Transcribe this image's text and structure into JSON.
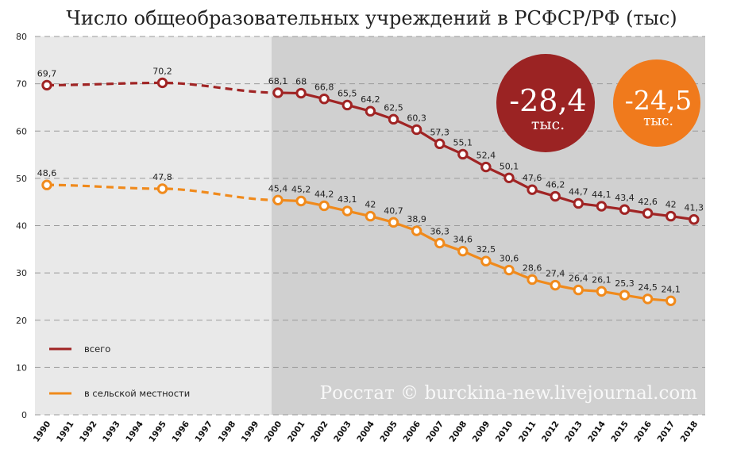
{
  "chart_data": {
    "type": "line",
    "title": "Число общеобразовательных учреждений в РСФСР/РФ (тыс)",
    "xlabel": "",
    "ylabel": "",
    "ylim": [
      0,
      80
    ],
    "yticks": [
      0,
      10,
      20,
      30,
      40,
      50,
      60,
      70,
      80
    ],
    "x": [
      1990,
      1991,
      1992,
      1993,
      1994,
      1995,
      1996,
      1997,
      1998,
      1999,
      2000,
      2001,
      2002,
      2003,
      2004,
      2005,
      2006,
      2007,
      2008,
      2009,
      2010,
      2011,
      2012,
      2013,
      2014,
      2015,
      2016,
      2017,
      2018
    ],
    "grid": true,
    "shaded_from_x": 2000,
    "series": [
      {
        "name": "всего",
        "color": "#a02424",
        "dashed_until_x": 2000,
        "points": [
          {
            "x": 1990,
            "y": 69.7,
            "label": "69,7"
          },
          {
            "x": 1995,
            "y": 70.2,
            "label": "70,2"
          },
          {
            "x": 2000,
            "y": 68.1,
            "label": "68,1"
          },
          {
            "x": 2001,
            "y": 68.0,
            "label": "68"
          },
          {
            "x": 2002,
            "y": 66.8,
            "label": "66,8"
          },
          {
            "x": 2003,
            "y": 65.5,
            "label": "65,5"
          },
          {
            "x": 2004,
            "y": 64.2,
            "label": "64,2"
          },
          {
            "x": 2005,
            "y": 62.5,
            "label": "62,5"
          },
          {
            "x": 2006,
            "y": 60.3,
            "label": "60,3"
          },
          {
            "x": 2007,
            "y": 57.3,
            "label": "57,3"
          },
          {
            "x": 2008,
            "y": 55.1,
            "label": "55,1"
          },
          {
            "x": 2009,
            "y": 52.4,
            "label": "52,4"
          },
          {
            "x": 2010,
            "y": 50.1,
            "label": "50,1"
          },
          {
            "x": 2011,
            "y": 47.6,
            "label": "47,6"
          },
          {
            "x": 2012,
            "y": 46.2,
            "label": "46,2"
          },
          {
            "x": 2013,
            "y": 44.7,
            "label": "44,7"
          },
          {
            "x": 2014,
            "y": 44.1,
            "label": "44,1"
          },
          {
            "x": 2015,
            "y": 43.4,
            "label": "43,4"
          },
          {
            "x": 2016,
            "y": 42.6,
            "label": "42,6"
          },
          {
            "x": 2017,
            "y": 42.0,
            "label": "42"
          },
          {
            "x": 2018,
            "y": 41.3,
            "label": "41,3"
          }
        ]
      },
      {
        "name": "в сельской местности",
        "color": "#f08a1c",
        "dashed_until_x": 2000,
        "points": [
          {
            "x": 1990,
            "y": 48.6,
            "label": "48,6"
          },
          {
            "x": 1995,
            "y": 47.8,
            "label": "47,8"
          },
          {
            "x": 2000,
            "y": 45.4,
            "label": "45,4"
          },
          {
            "x": 2001,
            "y": 45.2,
            "label": "45,2"
          },
          {
            "x": 2002,
            "y": 44.2,
            "label": "44,2"
          },
          {
            "x": 2003,
            "y": 43.1,
            "label": "43,1"
          },
          {
            "x": 2004,
            "y": 42.0,
            "label": "42"
          },
          {
            "x": 2005,
            "y": 40.7,
            "label": "40,7"
          },
          {
            "x": 2006,
            "y": 38.9,
            "label": "38,9"
          },
          {
            "x": 2007,
            "y": 36.3,
            "label": "36,3"
          },
          {
            "x": 2008,
            "y": 34.6,
            "label": "34,6"
          },
          {
            "x": 2009,
            "y": 32.5,
            "label": "32,5"
          },
          {
            "x": 2010,
            "y": 30.6,
            "label": "30,6"
          },
          {
            "x": 2011,
            "y": 28.6,
            "label": "28,6"
          },
          {
            "x": 2012,
            "y": 27.4,
            "label": "27,4"
          },
          {
            "x": 2013,
            "y": 26.4,
            "label": "26,4"
          },
          {
            "x": 2014,
            "y": 26.1,
            "label": "26,1"
          },
          {
            "x": 2015,
            "y": 25.3,
            "label": "25,3"
          },
          {
            "x": 2016,
            "y": 24.5,
            "label": "24,5"
          },
          {
            "x": 2017,
            "y": 24.1,
            "label": "24,1"
          }
        ]
      }
    ],
    "legend": {
      "placement": "bottom-left",
      "entries": [
        {
          "label": "всего",
          "color": "#a02424"
        },
        {
          "label": "в сельской местности",
          "color": "#f08a1c"
        }
      ]
    },
    "annotations": [
      {
        "kind": "badge",
        "value": "-28,4",
        "unit": "тыс.",
        "color": "#9b2323"
      },
      {
        "kind": "badge",
        "value": "-24,5",
        "unit": "тыс.",
        "color": "#f07a1c"
      }
    ],
    "watermark": "Росстат © burckina-new.livejournal.com"
  }
}
